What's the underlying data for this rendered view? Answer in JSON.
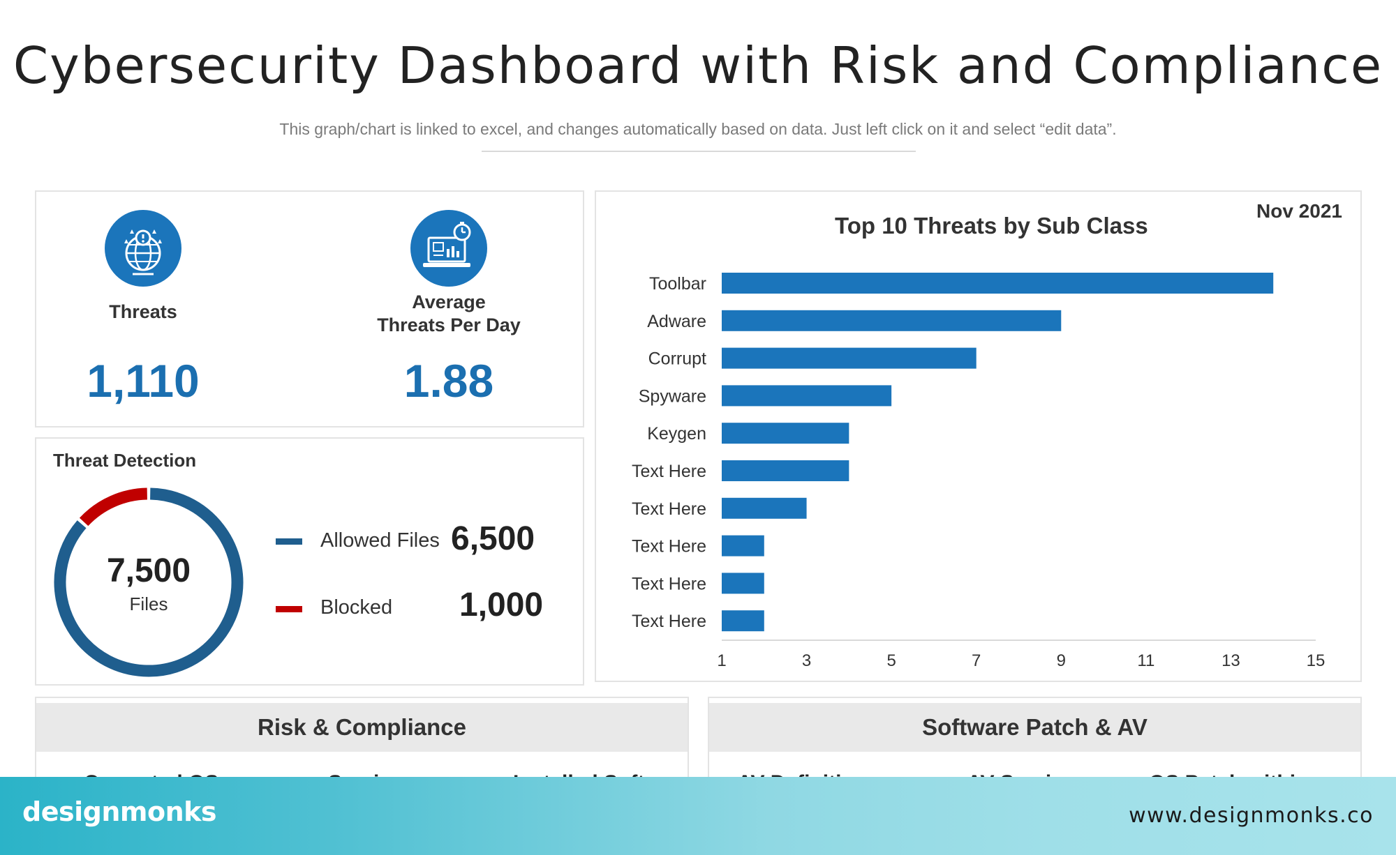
{
  "header": {
    "title": "Cybersecurity Dashboard with Risk and Compliance",
    "subtitle": "This graph/chart is linked to excel,  and changes automatically based on data. Just left click on it and select “edit data”."
  },
  "kpis": {
    "threats": {
      "label": "Threats",
      "value": "1,110",
      "icon": "globe-alert-icon"
    },
    "avg": {
      "label_line1": "Average",
      "label_line2": "Threats Per Day",
      "value": "1.88",
      "icon": "laptop-timer-icon"
    }
  },
  "threat_detection": {
    "title": "Threat Detection",
    "total_value": "7,500",
    "total_unit": "Files",
    "allowed": {
      "label": "Allowed Files",
      "value": "6,500",
      "count": 6500,
      "color": "#1f5e8e"
    },
    "blocked": {
      "label": "Blocked",
      "value": "1,000",
      "count": 1000,
      "color": "#c00000"
    }
  },
  "chart_data": {
    "type": "bar",
    "orientation": "horizontal",
    "title": "Top 10 Threats by Sub Class",
    "date": "Nov 2021",
    "categories": [
      "Toolbar",
      "Adware",
      "Corrupt",
      "Spyware",
      "Keygen",
      "Text Here",
      "Text Here",
      "Text Here",
      "Text Here",
      "Text Here"
    ],
    "values": [
      14,
      9,
      7,
      5,
      4,
      4,
      3,
      2,
      2,
      2
    ],
    "xlim": [
      1,
      15
    ],
    "xticks": [
      "1",
      "3",
      "5",
      "7",
      "9",
      "11",
      "13",
      "15"
    ],
    "color": "#1b75bb",
    "grid": false
  },
  "bottom": {
    "risk": {
      "title": "Risk & Compliance",
      "cut_items": [
        "Corrected OS",
        "Services",
        "Installed Soft"
      ]
    },
    "patch": {
      "title": "Software Patch & AV",
      "cut_items": [
        "AV Definition",
        "AV Service",
        "OS Patch within"
      ]
    }
  },
  "footer": {
    "brand": "designmonks",
    "website": "www.designmonks.co"
  }
}
